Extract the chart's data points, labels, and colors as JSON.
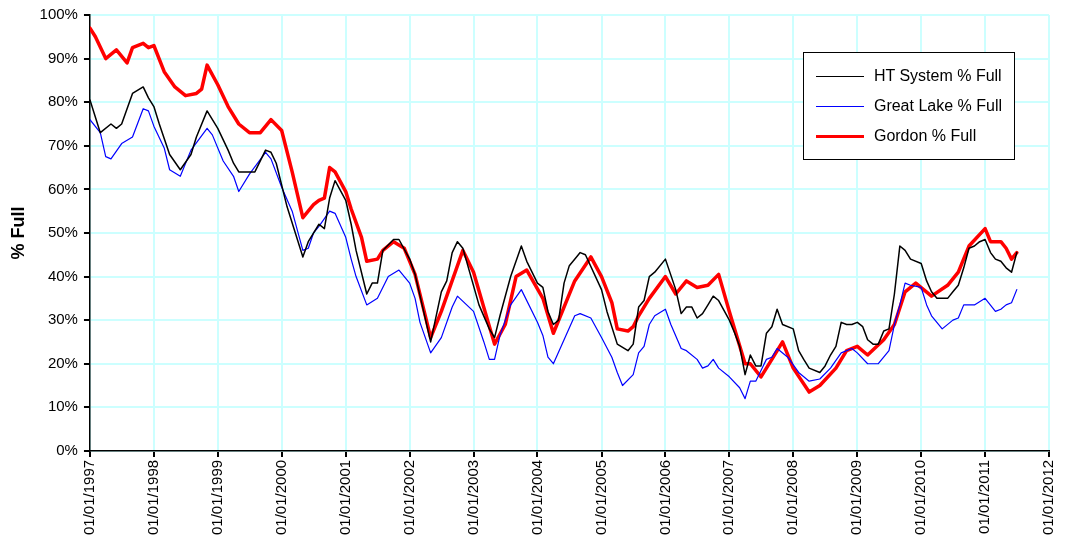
{
  "chart_data": {
    "type": "line",
    "ylabel": "% Full",
    "xlim": [
      "1997-01-01",
      "2012-01-01"
    ],
    "xticks": [
      {
        "value": "1997-01-01",
        "label": "01/01/1997"
      },
      {
        "value": "1998-01-01",
        "label": "01/01/1998"
      },
      {
        "value": "1999-01-01",
        "label": "01/01/1999"
      },
      {
        "value": "2000-01-01",
        "label": "01/01/2000"
      },
      {
        "value": "2001-01-01",
        "label": "01/01/2001"
      },
      {
        "value": "2002-01-01",
        "label": "01/01/2002"
      },
      {
        "value": "2003-01-01",
        "label": "01/01/2003"
      },
      {
        "value": "2004-01-01",
        "label": "01/01/2004"
      },
      {
        "value": "2005-01-01",
        "label": "01/01/2005"
      },
      {
        "value": "2006-01-01",
        "label": "01/01/2006"
      },
      {
        "value": "2007-01-01",
        "label": "01/01/2007"
      },
      {
        "value": "2008-01-01",
        "label": "01/01/2008"
      },
      {
        "value": "2009-01-01",
        "label": "01/01/2009"
      },
      {
        "value": "2010-01-01",
        "label": "01/01/2010"
      },
      {
        "value": "2011-01-01",
        "label": "01/01/2011"
      },
      {
        "value": "2012-01-01",
        "label": "01/01/2012"
      }
    ],
    "ylim": [
      0,
      100
    ],
    "yticks": [
      {
        "value": 0,
        "label": "0%"
      },
      {
        "value": 10,
        "label": "10%"
      },
      {
        "value": 20,
        "label": "20%"
      },
      {
        "value": 30,
        "label": "30%"
      },
      {
        "value": 40,
        "label": "40%"
      },
      {
        "value": 50,
        "label": "50%"
      },
      {
        "value": 60,
        "label": "60%"
      },
      {
        "value": 70,
        "label": "70%"
      },
      {
        "value": 80,
        "label": "80%"
      },
      {
        "value": 90,
        "label": "90%"
      },
      {
        "value": 100,
        "label": "100%"
      }
    ],
    "grid": true,
    "legend": "top right",
    "marker": "none",
    "line_style": "solid",
    "series": [
      {
        "name": "HT System % Full",
        "color": "#000000",
        "x": [
          "1997-01",
          "1997-03",
          "1997-05",
          "1997-06",
          "1997-07",
          "1997-09",
          "1997-11",
          "1997-12",
          "1998-01",
          "1998-02",
          "1998-04",
          "1998-06",
          "1998-08",
          "1998-09",
          "1998-11",
          "1999-01",
          "1999-03",
          "1999-04",
          "1999-05",
          "1999-08",
          "1999-10",
          "1999-11",
          "1999-12",
          "2000-02",
          "2000-05",
          "2000-06",
          "2000-08",
          "2000-09",
          "2000-10",
          "2000-11",
          "2001-01",
          "2001-02",
          "2001-03",
          "2001-05",
          "2001-06",
          "2001-07",
          "2001-08",
          "2001-10",
          "2001-11",
          "2002-01",
          "2002-02",
          "2002-05",
          "2002-07",
          "2002-08",
          "2002-09",
          "2002-10",
          "2002-11",
          "2003-02",
          "2003-04",
          "2003-05",
          "2003-06",
          "2003-08",
          "2003-10",
          "2003-11",
          "2004-01",
          "2004-02",
          "2004-03",
          "2004-04",
          "2004-05",
          "2004-06",
          "2004-07",
          "2004-09",
          "2004-10",
          "2005-01",
          "2005-02",
          "2005-04",
          "2005-06",
          "2005-07",
          "2005-08",
          "2005-09",
          "2005-10",
          "2005-11",
          "2006-01",
          "2006-03",
          "2006-04",
          "2006-05",
          "2006-06",
          "2006-07",
          "2006-08",
          "2006-09",
          "2006-10",
          "2006-11",
          "2007-01",
          "2007-02",
          "2007-03",
          "2007-04",
          "2007-05",
          "2007-06",
          "2007-07",
          "2007-08",
          "2007-09",
          "2007-10",
          "2007-11",
          "2008-01",
          "2008-02",
          "2008-03",
          "2008-04",
          "2008-06",
          "2008-07",
          "2008-08",
          "2008-09",
          "2008-10",
          "2008-11",
          "2008-12",
          "2009-01",
          "2009-02",
          "2009-03",
          "2009-04",
          "2009-05",
          "2009-06",
          "2009-07",
          "2009-08",
          "2009-09",
          "2009-10",
          "2009-11",
          "2010-01",
          "2010-02",
          "2010-03",
          "2010-04",
          "2010-06",
          "2010-07",
          "2010-08",
          "2010-09",
          "2010-10",
          "2010-11",
          "2010-12",
          "2011-01",
          "2011-02",
          "2011-03",
          "2011-04",
          "2011-05",
          "2011-06",
          "2011-07"
        ],
        "values": [
          80.5,
          73,
          75,
          74,
          75,
          82,
          83.5,
          81,
          79,
          75,
          68,
          64.5,
          68,
          72,
          78,
          74,
          69,
          66,
          64,
          64,
          69,
          68.5,
          66,
          56,
          44.5,
          48,
          52,
          51,
          58,
          62,
          57.5,
          52,
          46,
          36,
          38.5,
          38.5,
          46,
          48.5,
          48.5,
          44,
          40.5,
          25,
          36.5,
          39,
          45.5,
          48,
          46.5,
          33.5,
          28,
          26,
          31,
          40,
          47,
          43.5,
          38.5,
          37.5,
          32,
          29,
          30,
          38.5,
          42.5,
          45.5,
          45,
          37,
          32,
          24.5,
          23,
          24.5,
          33,
          34.5,
          40,
          41,
          44,
          37,
          31.5,
          33,
          33,
          30.5,
          31.5,
          33.5,
          35.5,
          34.5,
          30,
          27,
          24,
          17.5,
          22,
          19.5,
          19.5,
          27,
          28.5,
          32.5,
          29,
          28,
          23,
          21,
          19,
          18,
          19.5,
          22,
          24,
          29.5,
          29,
          29,
          29.5,
          28.5,
          25.5,
          24.5,
          24.5,
          27.5,
          28,
          36,
          47,
          46,
          44,
          43,
          39,
          36.5,
          35,
          35,
          36.5,
          38,
          42,
          46.5,
          47,
          48,
          48.5,
          45.5,
          44,
          43.5,
          42,
          41,
          45.5
        ]
      },
      {
        "name": "Great Lake % Full",
        "color": "#0000ff",
        "x": [
          "1997-01",
          "1997-03",
          "1997-04",
          "1997-05",
          "1997-07",
          "1997-09",
          "1997-11",
          "1997-12",
          "1998-01",
          "1998-03",
          "1998-04",
          "1998-06",
          "1998-08",
          "1998-11",
          "1998-12",
          "1999-02",
          "1999-04",
          "1999-05",
          "1999-07",
          "1999-10",
          "1999-11",
          "2000-01",
          "2000-03",
          "2000-05",
          "2000-06",
          "2000-07",
          "2000-08",
          "2000-10",
          "2000-11",
          "2001-01",
          "2001-02",
          "2001-03",
          "2001-05",
          "2001-07",
          "2001-09",
          "2001-11",
          "2002-01",
          "2002-02",
          "2002-03",
          "2002-05",
          "2002-07",
          "2002-09",
          "2002-10",
          "2003-01",
          "2003-03",
          "2003-04",
          "2003-05",
          "2003-06",
          "2003-08",
          "2003-10",
          "2004-01",
          "2004-02",
          "2004-03",
          "2004-04",
          "2004-06",
          "2004-08",
          "2004-09",
          "2004-11",
          "2005-01",
          "2005-03",
          "2005-04",
          "2005-05",
          "2005-07",
          "2005-08",
          "2005-09",
          "2005-10",
          "2005-11",
          "2006-01",
          "2006-02",
          "2006-04",
          "2006-05",
          "2006-07",
          "2006-08",
          "2006-09",
          "2006-10",
          "2006-11",
          "2007-01",
          "2007-03",
          "2007-04",
          "2007-05",
          "2007-06",
          "2007-08",
          "2007-09",
          "2007-10",
          "2007-12",
          "2008-02",
          "2008-04",
          "2008-06",
          "2008-08",
          "2008-10",
          "2008-12",
          "2009-01",
          "2009-03",
          "2009-05",
          "2009-07",
          "2009-08",
          "2009-09",
          "2009-10",
          "2009-11",
          "2010-01",
          "2010-02",
          "2010-03",
          "2010-05",
          "2010-07",
          "2010-08",
          "2010-09",
          "2010-11",
          "2011-01",
          "2011-03",
          "2011-04",
          "2011-05",
          "2011-06",
          "2011-07"
        ],
        "values": [
          76,
          73,
          67.5,
          67,
          70.5,
          72,
          78.5,
          78,
          74.5,
          69.5,
          64.5,
          63,
          69,
          74,
          72.5,
          66.5,
          63,
          59.5,
          63.5,
          68.5,
          67,
          60.5,
          55,
          46,
          46.5,
          50,
          51.5,
          55,
          54.5,
          49,
          44,
          40,
          33.5,
          35,
          40,
          41.5,
          38.5,
          35,
          29.5,
          22.5,
          26,
          33,
          35.5,
          32,
          25,
          21,
          21,
          26.5,
          33.5,
          37,
          29.5,
          26.5,
          21.5,
          20,
          25.5,
          31,
          31.5,
          30.5,
          26,
          21.5,
          18,
          15,
          17.5,
          22.5,
          24,
          29,
          31,
          32.5,
          29,
          23.5,
          23,
          21,
          19,
          19.5,
          21,
          19,
          17,
          14.5,
          12,
          16,
          16,
          21,
          21.5,
          23.5,
          21.5,
          18,
          16,
          16.5,
          19,
          22.5,
          23.5,
          22.5,
          20,
          20,
          23,
          29,
          33.5,
          38.5,
          38,
          37.5,
          33.5,
          31,
          28,
          30,
          30.5,
          33.5,
          33.5,
          35,
          32,
          32.5,
          33.5,
          34,
          37
        ]
      },
      {
        "name": "Gordon % Full",
        "color": "#ff0000",
        "x": [
          "1997-01",
          "1997-02",
          "1997-04",
          "1997-06",
          "1997-08",
          "1997-09",
          "1997-11",
          "1997-12",
          "1998-01",
          "1998-03",
          "1998-05",
          "1998-07",
          "1998-09",
          "1998-10",
          "1998-11",
          "1999-01",
          "1999-03",
          "1999-05",
          "1999-07",
          "1999-09",
          "1999-11",
          "2000-01",
          "2000-03",
          "2000-05",
          "2000-07",
          "2000-08",
          "2000-09",
          "2000-10",
          "2000-11",
          "2001-01",
          "2001-02",
          "2001-04",
          "2001-05",
          "2001-07",
          "2001-08",
          "2001-10",
          "2001-12",
          "2002-02",
          "2002-05",
          "2002-07",
          "2002-11",
          "2003-01",
          "2003-05",
          "2003-07",
          "2003-09",
          "2003-11",
          "2004-02",
          "2004-04",
          "2004-08",
          "2004-11",
          "2005-01",
          "2005-03",
          "2005-04",
          "2005-06",
          "2005-07",
          "2005-08",
          "2005-10",
          "2006-01",
          "2006-03",
          "2006-05",
          "2006-07",
          "2006-09",
          "2006-11",
          "2007-01",
          "2007-04",
          "2007-05",
          "2007-07",
          "2007-09",
          "2007-11",
          "2008-01",
          "2008-04",
          "2008-06",
          "2008-09",
          "2008-11",
          "2009-01",
          "2009-03",
          "2009-06",
          "2009-08",
          "2009-10",
          "2009-12",
          "2010-03",
          "2010-06",
          "2010-08",
          "2010-10",
          "2011-01",
          "2011-02",
          "2011-04",
          "2011-05",
          "2011-06",
          "2011-07"
        ],
        "values": [
          97,
          95,
          90,
          92,
          89,
          92.5,
          93.5,
          92.5,
          93,
          87,
          83.5,
          81.5,
          82,
          83,
          88.5,
          84,
          79,
          75,
          73,
          73,
          76,
          73.5,
          64,
          53.5,
          56.5,
          57.5,
          58,
          65,
          64,
          59.5,
          55.5,
          49,
          43.5,
          44,
          46,
          48,
          46.5,
          40.5,
          26,
          32,
          46,
          41,
          24.5,
          29,
          40,
          41.5,
          35,
          27,
          39,
          44.5,
          40,
          34,
          28,
          27.5,
          28.5,
          31,
          35,
          40,
          36,
          39,
          37.5,
          38,
          40.5,
          32,
          20,
          20,
          17,
          21,
          25,
          19,
          13.5,
          15,
          19,
          23,
          24,
          22,
          25.5,
          29,
          36.5,
          38.5,
          35.5,
          38,
          41,
          47,
          51,
          48,
          48,
          46.5,
          44,
          45.5
        ]
      }
    ]
  }
}
